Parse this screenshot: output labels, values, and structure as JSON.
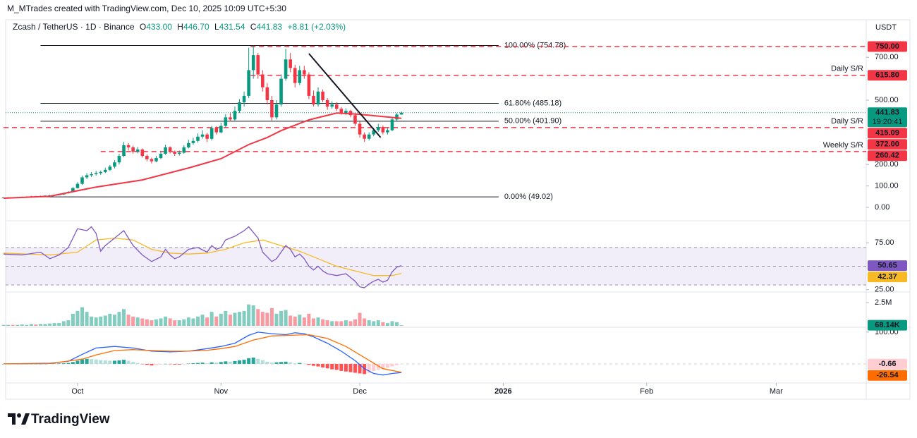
{
  "header": {
    "credit": "M_MTrades created with TradingView.com, Dec 10, 2025 10:09 UTC+5:30",
    "symbol": "Zcash / TetherUS · 1D · Binance",
    "ohlc": [
      [
        "O",
        "433.00"
      ],
      [
        "H",
        "446.70"
      ],
      [
        "L",
        "431.54"
      ],
      [
        "C",
        "441.83"
      ]
    ],
    "change": "+8.81 (+2.03%)",
    "brand": "TradingView"
  },
  "chart_data": [
    {
      "type": "candlestick",
      "currency": "USDT",
      "up_color": "#089981",
      "down_color": "#f23645",
      "xlim": [
        0,
        186
      ],
      "xticks": [
        {
          "value": 16,
          "label": "Oct"
        },
        {
          "value": 47,
          "label": "Nov"
        },
        {
          "value": 77,
          "label": "Dec"
        },
        {
          "value": 108,
          "label": "2026"
        },
        {
          "value": 139,
          "label": "Feb"
        },
        {
          "value": 167,
          "label": "Mar"
        }
      ],
      "ylim": [
        -59,
        796
      ],
      "yticks": [
        {
          "value": 0,
          "label": "0.00"
        },
        {
          "value": 100,
          "label": "100.00"
        },
        {
          "value": 200,
          "label": "200.00"
        },
        {
          "value": 500,
          "label": "500.00"
        },
        {
          "value": 700,
          "label": "700.00"
        }
      ],
      "candles": [
        [
          45,
          48,
          44,
          46
        ],
        [
          46,
          48,
          45,
          47
        ],
        [
          47,
          48,
          45,
          46
        ],
        [
          46,
          49,
          45,
          48
        ],
        [
          48,
          51,
          47,
          49
        ],
        [
          49,
          52,
          48,
          50
        ],
        [
          50,
          54,
          49,
          52
        ],
        [
          52,
          54,
          50,
          51
        ],
        [
          51,
          55,
          50,
          53
        ],
        [
          53,
          57,
          52,
          55
        ],
        [
          55,
          58,
          53,
          56
        ],
        [
          56,
          60,
          55,
          58
        ],
        [
          58,
          63,
          57,
          60
        ],
        [
          60,
          68,
          58,
          66
        ],
        [
          66,
          75,
          64,
          72
        ],
        [
          72,
          95,
          70,
          90
        ],
        [
          90,
          118,
          88,
          110
        ],
        [
          110,
          148,
          105,
          140
        ],
        [
          140,
          160,
          132,
          150
        ],
        [
          150,
          165,
          142,
          155
        ],
        [
          155,
          170,
          148,
          160
        ],
        [
          160,
          172,
          152,
          165
        ],
        [
          165,
          185,
          160,
          175
        ],
        [
          175,
          198,
          170,
          190
        ],
        [
          190,
          220,
          182,
          210
        ],
        [
          210,
          250,
          200,
          240
        ],
        [
          240,
          305,
          235,
          290
        ],
        [
          290,
          300,
          265,
          280
        ],
        [
          280,
          288,
          250,
          260
        ],
        [
          260,
          282,
          252,
          270
        ],
        [
          270,
          275,
          232,
          240
        ],
        [
          240,
          248,
          215,
          225
        ],
        [
          225,
          232,
          205,
          215
        ],
        [
          215,
          240,
          210,
          230
        ],
        [
          230,
          262,
          225,
          250
        ],
        [
          250,
          292,
          245,
          280
        ],
        [
          280,
          285,
          252,
          260
        ],
        [
          260,
          265,
          240,
          250
        ],
        [
          250,
          265,
          242,
          255
        ],
        [
          255,
          290,
          250,
          280
        ],
        [
          280,
          315,
          275,
          300
        ],
        [
          300,
          325,
          292,
          310
        ],
        [
          310,
          345,
          302,
          330
        ],
        [
          330,
          360,
          320,
          340
        ],
        [
          340,
          348,
          305,
          320
        ],
        [
          320,
          380,
          312,
          370
        ],
        [
          370,
          378,
          340,
          350
        ],
        [
          350,
          395,
          345,
          380
        ],
        [
          380,
          435,
          372,
          420
        ],
        [
          420,
          440,
          400,
          410
        ],
        [
          410,
          470,
          405,
          450
        ],
        [
          450,
          505,
          440,
          490
        ],
        [
          490,
          540,
          470,
          520
        ],
        [
          520,
          745,
          510,
          640
        ],
        [
          640,
          754.78,
          600,
          710
        ],
        [
          710,
          720,
          600,
          620
        ],
        [
          620,
          640,
          540,
          560
        ],
        [
          560,
          580,
          480,
          500
        ],
        [
          500,
          520,
          405,
          420
        ],
        [
          420,
          500,
          410,
          480
        ],
        [
          480,
          620,
          470,
          600
        ],
        [
          600,
          740,
          590,
          690
        ],
        [
          690,
          720,
          630,
          650
        ],
        [
          650,
          665,
          560,
          580
        ],
        [
          580,
          660,
          570,
          640
        ],
        [
          640,
          660,
          600,
          620
        ],
        [
          620,
          630,
          505,
          520
        ],
        [
          520,
          545,
          470,
          480
        ],
        [
          480,
          560,
          470,
          540
        ],
        [
          540,
          550,
          490,
          500
        ],
        [
          500,
          510,
          455,
          470
        ],
        [
          470,
          495,
          460,
          480
        ],
        [
          480,
          490,
          450,
          460
        ],
        [
          460,
          468,
          432,
          440
        ],
        [
          440,
          462,
          430,
          450
        ],
        [
          450,
          455,
          420,
          430
        ],
        [
          430,
          440,
          380,
          390
        ],
        [
          390,
          400,
          325,
          340
        ],
        [
          340,
          350,
          305,
          320
        ],
        [
          320,
          350,
          312,
          340
        ],
        [
          340,
          372,
          332,
          360
        ],
        [
          360,
          390,
          352,
          375
        ],
        [
          375,
          382,
          340,
          350
        ],
        [
          350,
          372,
          340,
          360
        ],
        [
          360,
          420,
          355,
          410
        ],
        [
          410,
          440,
          402,
          433
        ],
        [
          433,
          446.7,
          431.54,
          441.83
        ]
      ],
      "last": {
        "value": 441.83,
        "label": "441.83",
        "countdown": "19:20:41",
        "color": "#089981"
      },
      "ema": {
        "color": "#f23645",
        "x": [
          0,
          10,
          20,
          30,
          40,
          47,
          53,
          57,
          60,
          66,
          72,
          77,
          86
        ],
        "values": [
          43,
          52,
          95,
          128,
          184,
          227,
          293,
          326,
          358,
          408,
          440,
          434,
          415.09
        ],
        "value_label": "415.09"
      },
      "fib": {
        "x": [
          8,
          107
        ],
        "levels": [
          {
            "value": 754.78,
            "label": "100.00% (754.78)"
          },
          {
            "value": 485.18,
            "label": "61.80% (485.18)"
          },
          {
            "value": 401.9,
            "label": "50.00% (401.90)"
          },
          {
            "value": 49.02,
            "label": "0.00% (49.02)"
          }
        ]
      },
      "sr": [
        {
          "value": 750,
          "badge": "750.00",
          "x0": 53.4
        },
        {
          "value": 615.8,
          "badge": "615.80",
          "text": "Daily S/R",
          "x0": 53.4
        },
        {
          "value": 372,
          "badge": "372.00",
          "text": "Daily S/R",
          "x0": 0
        },
        {
          "value": 260.42,
          "badge": "260.42",
          "text": "Weekly S/R",
          "x0": 21
        }
      ],
      "sr_color": "#f23645",
      "trendline": {
        "x": [
          66,
          81.5
        ],
        "values": [
          717,
          326
        ]
      }
    },
    {
      "type": "line",
      "ylim": [
        24,
        97
      ],
      "yticks": [
        {
          "value": 75,
          "label": "75.00"
        },
        {
          "value": 25,
          "label": "25.00"
        }
      ],
      "levels": [
        70,
        50,
        30
      ],
      "series": [
        {
          "color": "#7e57c2",
          "x": [
            0,
            4,
            8,
            10,
            12,
            14,
            16,
            18,
            19,
            20,
            21,
            22,
            24,
            26,
            27,
            28,
            30,
            32,
            34,
            35,
            36,
            37,
            38,
            40,
            42,
            44,
            45,
            46,
            47,
            48,
            50,
            52,
            53,
            55,
            56,
            57,
            58,
            59,
            60,
            61,
            62,
            63,
            64,
            65,
            66,
            67,
            68,
            69,
            70,
            72,
            74,
            75,
            76,
            77,
            78,
            79,
            80,
            81,
            82,
            83,
            84,
            85,
            86
          ],
          "values": [
            63,
            62,
            65,
            58,
            62,
            70,
            90,
            88,
            92,
            85,
            66,
            72,
            80,
            88,
            80,
            72,
            62,
            55,
            60,
            68,
            62,
            58,
            60,
            68,
            70,
            65,
            72,
            68,
            70,
            78,
            82,
            88,
            92,
            80,
            65,
            60,
            55,
            58,
            65,
            72,
            68,
            60,
            63,
            58,
            50,
            46,
            50,
            45,
            42,
            40,
            42,
            38,
            34,
            28,
            27,
            31,
            34,
            36,
            33,
            35,
            44,
            49,
            50.65
          ],
          "value_label": "50.65"
        },
        {
          "color": "#f7b924",
          "x": [
            0,
            10,
            16,
            20,
            24,
            28,
            32,
            36,
            40,
            44,
            48,
            52,
            56,
            60,
            64,
            68,
            72,
            76,
            80,
            84,
            86
          ],
          "values": [
            64,
            62,
            65,
            78,
            80,
            78,
            68,
            64,
            63,
            64,
            68,
            75,
            78,
            72,
            66,
            58,
            50,
            45,
            40,
            40,
            42.37
          ],
          "value_label": "42.37"
        }
      ]
    },
    {
      "type": "bar",
      "ylim": [
        0,
        3560000
      ],
      "yticks": [
        {
          "value": 2500000,
          "label": "2.5M"
        }
      ],
      "value_label": "68.14K",
      "values": [
        100000,
        100000,
        100000,
        100000,
        150000,
        100000,
        200000,
        150000,
        200000,
        200000,
        250000,
        300000,
        300000,
        500000,
        600000,
        1300000,
        1600000,
        2000000,
        1500000,
        1000000,
        900000,
        1000000,
        1100000,
        1300000,
        1200000,
        1500000,
        1800000,
        1200000,
        1000000,
        900000,
        800000,
        700000,
        600000,
        700000,
        800000,
        1000000,
        800000,
        600000,
        600000,
        700000,
        900000,
        800000,
        1000000,
        1200000,
        900000,
        1500000,
        1000000,
        1300000,
        1600000,
        1200000,
        1400000,
        1500000,
        1600000,
        2300000,
        2200000,
        1800000,
        1500000,
        1400000,
        1900000,
        1300000,
        1600000,
        1700000,
        1100000,
        1000000,
        1200000,
        900000,
        1300000,
        800000,
        900000,
        700000,
        600000,
        500000,
        500000,
        500000,
        600000,
        500000,
        700000,
        1400000,
        800000,
        600000,
        500000,
        600000,
        400000,
        300000,
        500000,
        400000,
        68140
      ]
    },
    {
      "type": "macd",
      "ylim": [
        -60,
        113
      ],
      "yticks": [
        {
          "value": 100,
          "label": "100.00"
        }
      ],
      "histogram": [
        0,
        0,
        0,
        0,
        0,
        0,
        0,
        0,
        0,
        0.5,
        1,
        1,
        1.5,
        2,
        3,
        6,
        10,
        14,
        16,
        15,
        14,
        12,
        11,
        10,
        10,
        11,
        13,
        10,
        6,
        3,
        -1,
        -3,
        -5,
        -4,
        -2,
        0,
        -1,
        -2,
        -2,
        -1,
        1,
        2,
        3,
        4,
        2,
        5,
        4,
        6,
        8,
        7,
        9,
        11,
        13,
        18,
        20,
        16,
        12,
        7,
        4,
        5,
        6,
        7,
        5,
        2,
        3,
        1,
        -3,
        -6,
        -8,
        -11,
        -14,
        -17,
        -19,
        -22,
        -24,
        -26,
        -28,
        -30,
        -32,
        -28,
        -22,
        -18,
        -15,
        -12,
        -8,
        -4,
        -0.66
      ],
      "histogram_label": "-0.66",
      "macd": {
        "color": "#2962ff",
        "x": [
          0,
          10,
          14,
          17,
          20,
          24,
          28,
          32,
          36,
          40,
          44,
          47,
          50,
          53,
          55,
          58,
          61,
          63,
          65,
          67,
          70,
          73,
          76,
          78,
          80,
          82,
          84,
          86
        ],
        "values": [
          0,
          2,
          8,
          30,
          50,
          55,
          50,
          40,
          38,
          40,
          48,
          55,
          65,
          90,
          100,
          95,
          92,
          98,
          95,
          85,
          65,
          40,
          10,
          -15,
          -30,
          -35,
          -30,
          -27.2
        ]
      },
      "signal": {
        "color": "#ff6d00",
        "x": [
          0,
          10,
          17,
          20,
          24,
          28,
          32,
          36,
          40,
          44,
          47,
          50,
          54,
          58,
          62,
          66,
          70,
          74,
          78,
          82,
          86
        ],
        "values": [
          0,
          1,
          15,
          28,
          42,
          45,
          42,
          40,
          40,
          43,
          48,
          55,
          75,
          88,
          90,
          92,
          80,
          55,
          20,
          -15,
          -26.54
        ],
        "value_label": "-26.54"
      }
    }
  ]
}
